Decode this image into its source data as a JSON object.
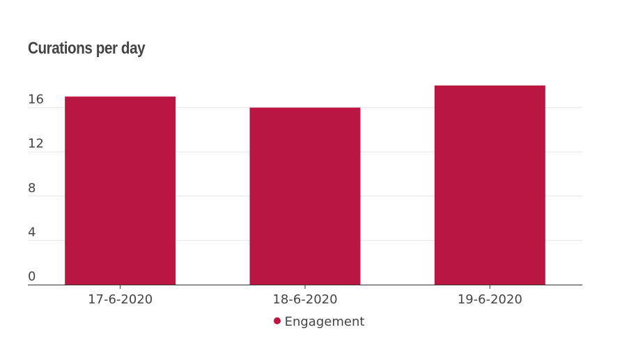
{
  "chart_data": {
    "type": "bar",
    "title": "Curations per day",
    "categories": [
      "17-6-2020",
      "18-6-2020",
      "19-6-2020"
    ],
    "series": [
      {
        "name": "Engagement",
        "values": [
          17,
          16,
          18
        ]
      }
    ],
    "ylim": [
      0,
      18
    ],
    "yticks": [
      "0",
      "4",
      "8",
      "12",
      "16"
    ],
    "grid": true,
    "legend_position": "bottom",
    "bar_color": "#bb1641"
  }
}
